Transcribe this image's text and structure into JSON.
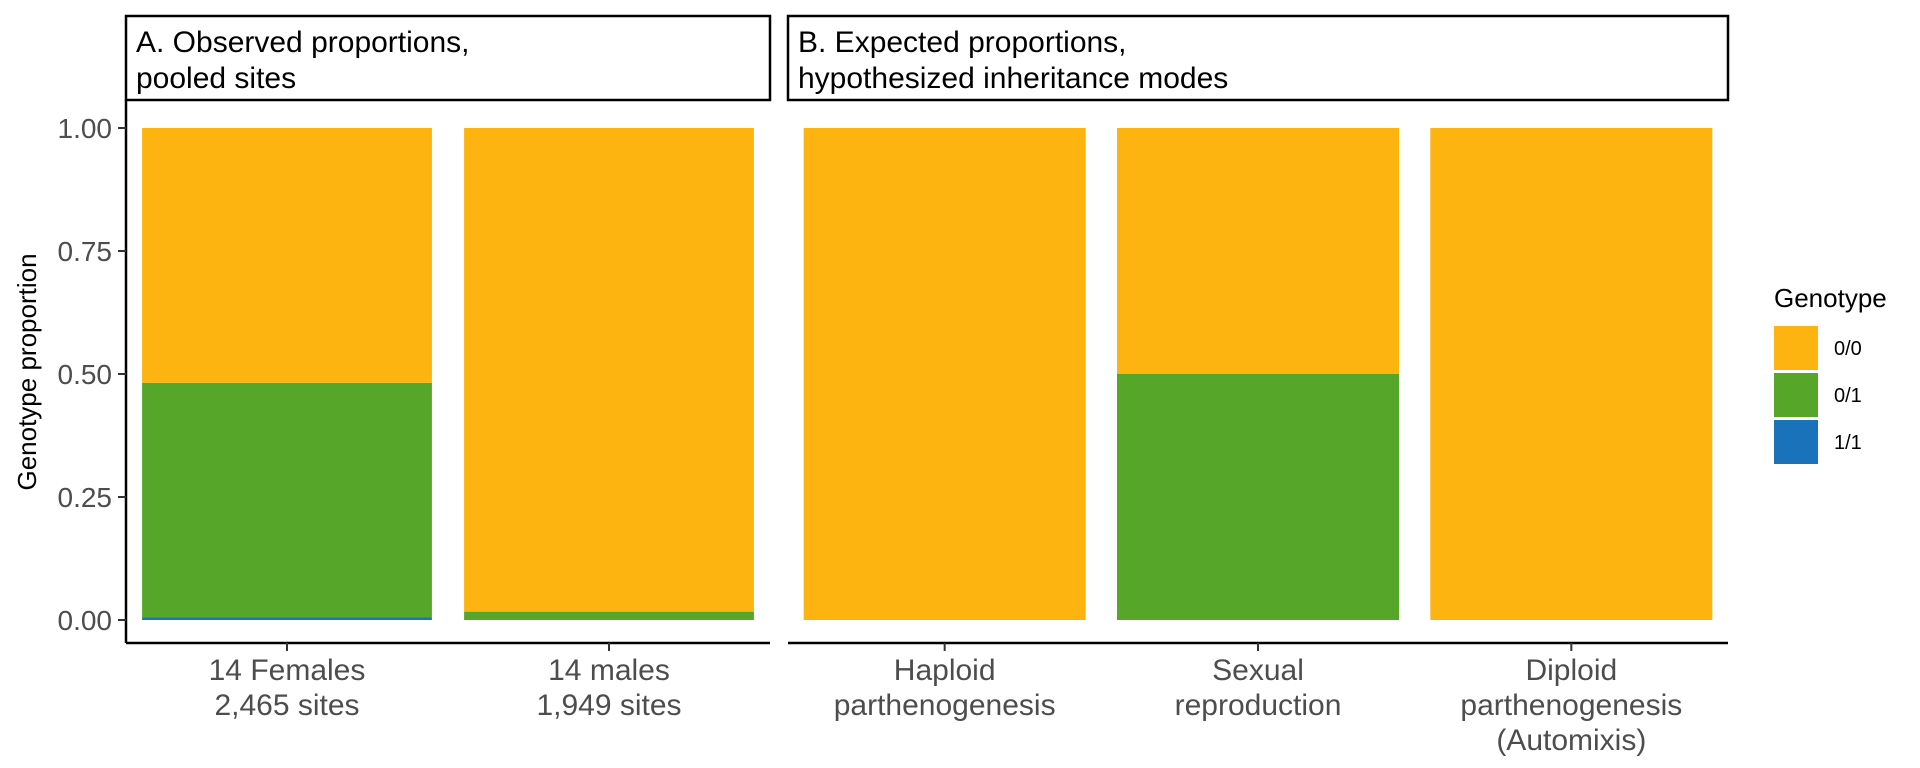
{
  "chart_data": {
    "type": "bar",
    "stacked": true,
    "ylabel": "Genotype proportion",
    "ylim": [
      0,
      1
    ],
    "yticks": [
      "0.00",
      "0.25",
      "0.50",
      "0.75",
      "1.00"
    ],
    "legend": {
      "title": "Genotype",
      "position": "right",
      "entries": [
        {
          "label": "0/0",
          "color": "#FDB310"
        },
        {
          "label": "0/1",
          "color": "#56A62A"
        },
        {
          "label": "1/1",
          "color": "#1A72BB"
        }
      ]
    },
    "panels": [
      {
        "title_lines": [
          "A. Observed proportions,",
          "     pooled sites"
        ],
        "bars": [
          {
            "label_lines": [
              "14 Females",
              "2,465 sites"
            ],
            "values": {
              "0/0": 0.518,
              "0/1": 0.477,
              "1/1": 0.005
            }
          },
          {
            "label_lines": [
              "14 males",
              "1,949 sites"
            ],
            "values": {
              "0/0": 0.983,
              "0/1": 0.017,
              "1/1": 0.0
            }
          }
        ]
      },
      {
        "title_lines": [
          "B. Expected proportions,",
          "     hypothesized inheritance modes"
        ],
        "bars": [
          {
            "label_lines": [
              "Haploid",
              "parthenogenesis"
            ],
            "values": {
              "0/0": 1.0,
              "0/1": 0.0,
              "1/1": 0.0
            }
          },
          {
            "label_lines": [
              "Sexual",
              "reproduction"
            ],
            "values": {
              "0/0": 0.5,
              "0/1": 0.5,
              "1/1": 0.0
            }
          },
          {
            "label_lines": [
              "Diploid",
              "parthenogenesis",
              "(Automixis)"
            ],
            "values": {
              "0/0": 1.0,
              "0/1": 0.0,
              "1/1": 0.0
            }
          }
        ]
      }
    ]
  }
}
